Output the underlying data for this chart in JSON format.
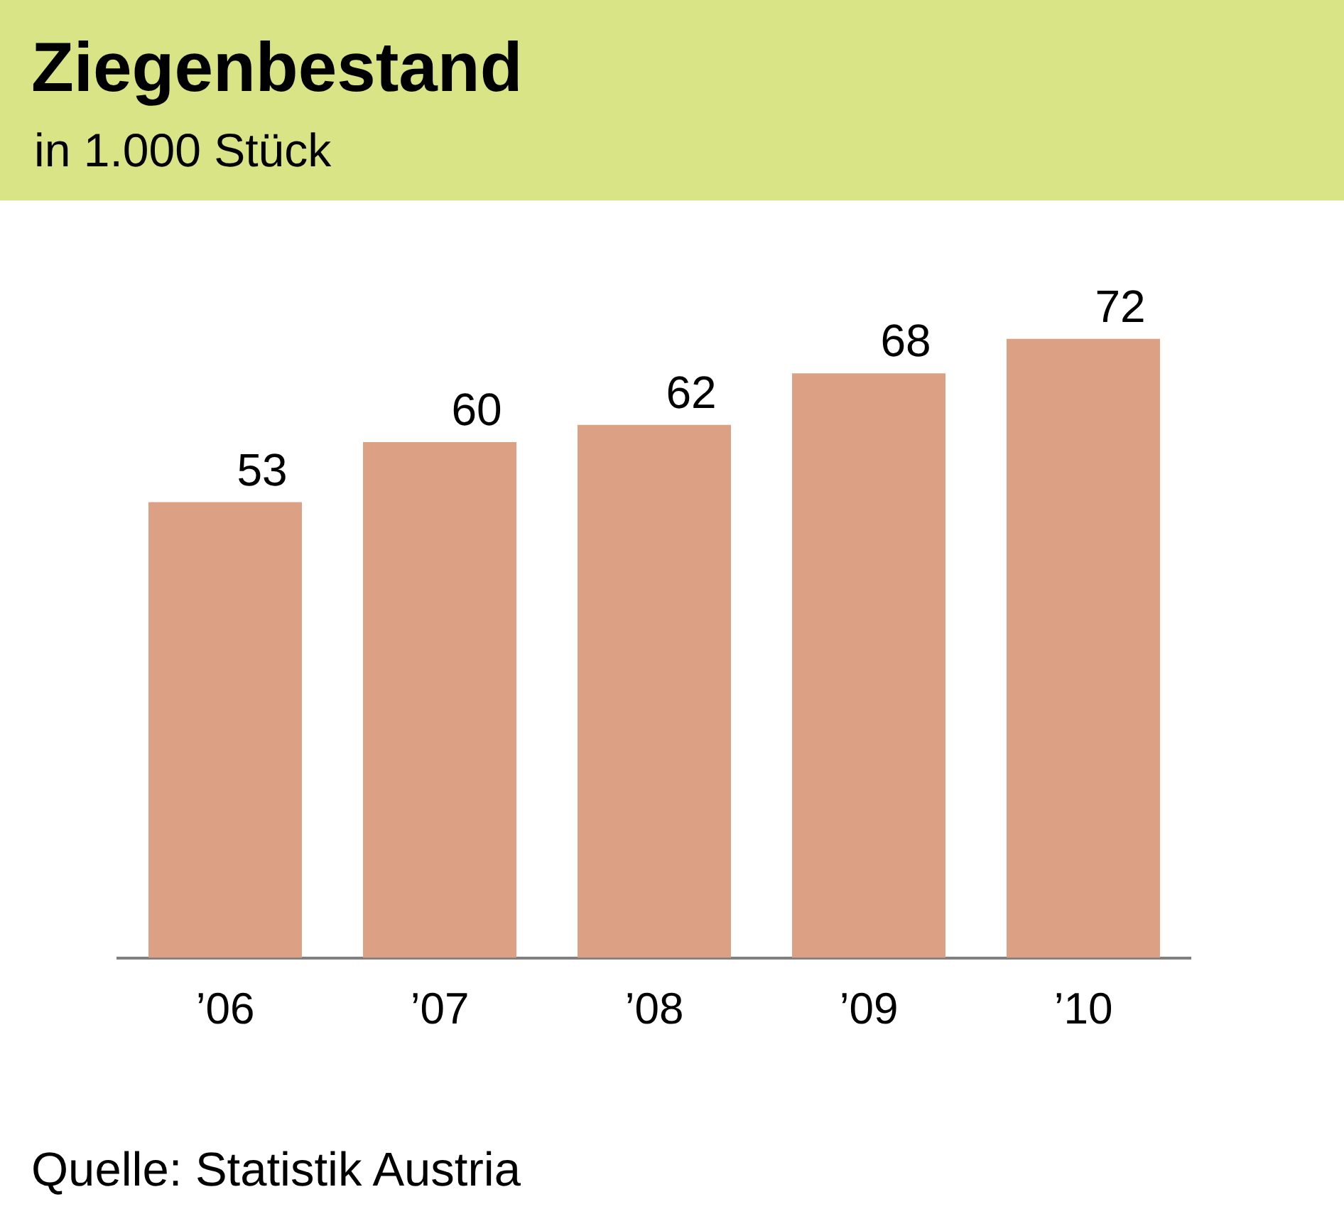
{
  "chart_data": {
    "type": "bar",
    "title": "Ziegenbestand",
    "subtitle": "in 1.000 Stück",
    "categories": [
      "’06",
      "’07",
      "’08",
      "’09",
      "’10"
    ],
    "values": [
      53,
      60,
      62,
      68,
      72
    ],
    "color": "#dca085",
    "data_labels": true,
    "tick_labels": "x",
    "annotations": [
      "Quelle: Statistik Austria"
    ]
  }
}
